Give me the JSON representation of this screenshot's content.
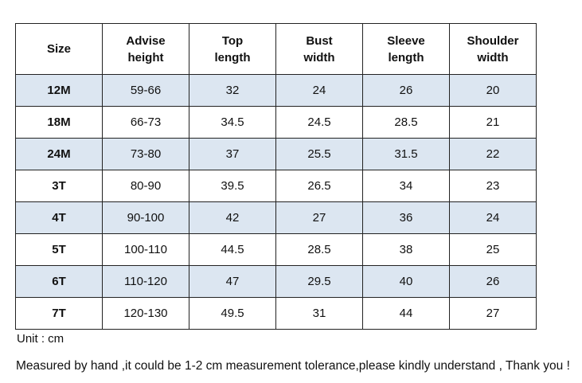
{
  "table": {
    "header": [
      "Size",
      "Advise height",
      "Top length",
      "Bust width",
      "Sleeve length",
      "Shoulder width"
    ],
    "rows": [
      [
        "12M",
        "59-66",
        32,
        24,
        26,
        20
      ],
      [
        "18M",
        "66-73",
        34.5,
        24.5,
        28.5,
        21
      ],
      [
        "24M",
        "73-80",
        37,
        25.5,
        31.5,
        22
      ],
      [
        "3T",
        "80-90",
        39.5,
        26.5,
        34,
        23
      ],
      [
        "4T",
        "90-100",
        42,
        27,
        36,
        24
      ],
      [
        "5T",
        "100-110",
        44.5,
        28.5,
        38,
        25
      ],
      [
        "6T",
        "110-120",
        47,
        29.5,
        40,
        26
      ],
      [
        "7T",
        "120-130",
        49.5,
        31,
        44,
        27
      ]
    ]
  },
  "notes": {
    "unit": "Unit : cm",
    "disclaimer": "Measured by hand ,it could be 1-2 cm measurement tolerance,please kindly understand , Thank you !"
  }
}
